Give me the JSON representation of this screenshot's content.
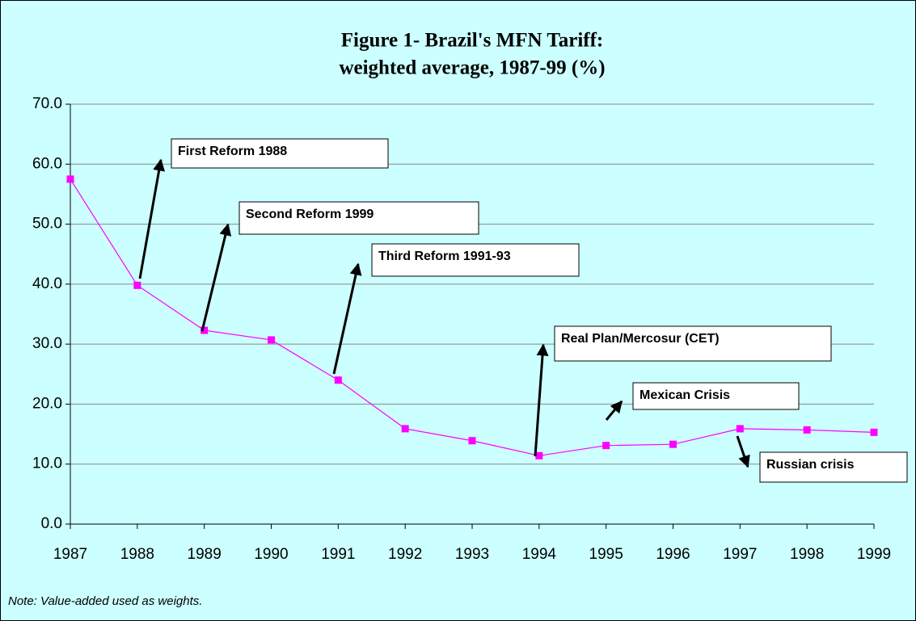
{
  "chart_data": {
    "type": "line",
    "title": [
      "Figure 1- Brazil's  MFN Tariff:",
      "weighted average, 1987-99 (%)"
    ],
    "note": "Note: Value-added used as weights.",
    "x": [
      1987,
      1988,
      1989,
      1990,
      1991,
      1992,
      1993,
      1994,
      1995,
      1996,
      1997,
      1998,
      1999
    ],
    "series": [
      {
        "name": "MFN Tariff",
        "color": "#ff00ff",
        "values": [
          57.5,
          39.8,
          32.3,
          30.7,
          24.0,
          15.9,
          13.9,
          11.4,
          13.1,
          13.3,
          15.9,
          15.7,
          15.3
        ]
      }
    ],
    "xlim": [
      1987,
      1999
    ],
    "xticks": [
      1987,
      1988,
      1989,
      1990,
      1991,
      1992,
      1993,
      1994,
      1995,
      1996,
      1997,
      1998,
      1999
    ],
    "ylim": [
      0,
      70
    ],
    "yticks": [
      {
        "value": 0,
        "label": "0.0"
      },
      {
        "value": 10,
        "label": "10.0"
      },
      {
        "value": 20,
        "label": "20.0"
      },
      {
        "value": 30,
        "label": "30.0"
      },
      {
        "value": 40,
        "label": "40.0"
      },
      {
        "value": 50,
        "label": "50.0"
      },
      {
        "value": 60,
        "label": "60.0"
      },
      {
        "value": 70,
        "label": "70.0"
      }
    ],
    "grid": true,
    "annotations": [
      {
        "text": "First  Reform 1988"
      },
      {
        "text": "Second Reform 1999"
      },
      {
        "text": "Third Reform 1991-93"
      },
      {
        "text": "Real Plan/Mercosur (CET)"
      },
      {
        "text": "Mexican Crisis"
      },
      {
        "text": "Russian crisis"
      }
    ]
  }
}
